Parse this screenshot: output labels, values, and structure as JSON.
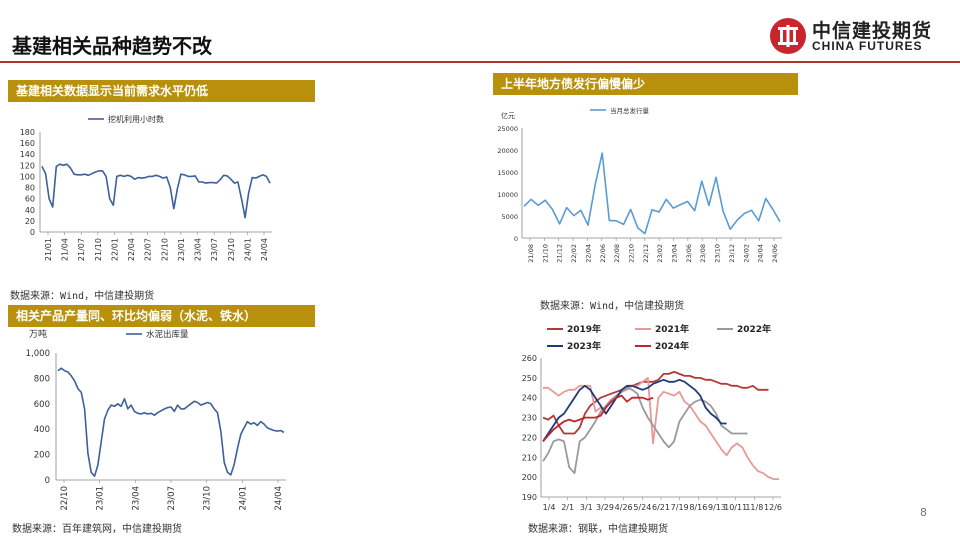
{
  "page": {
    "title": "基建相关品种趋势不改",
    "page_number": "8",
    "logo_cn": "中信建投期货",
    "logo_en": "CHINA FUTURES"
  },
  "panels": {
    "excavator": {
      "header": "基建相关数据显示当前需求水平仍低",
      "source": "数据来源：Wind，中信建投期货"
    },
    "bonds": {
      "header": "上半年地方债发行偏慢偏少",
      "source": "数据来源：Wind，中信建投期货"
    },
    "cement": {
      "header": "相关产品产量同、环比均偏弱（水泥、铁水）",
      "source": "数据来源：百年建筑网，中信建投期货"
    },
    "iron": {
      "source": "数据来源：钢联，中信建投期货"
    }
  },
  "colors": {
    "band": "#b8900c",
    "accent": "#b5312b"
  },
  "chart_data": [
    {
      "id": "excavator",
      "type": "line",
      "legend": [
        "挖机利用小时数"
      ],
      "ylim": [
        0,
        180
      ],
      "yticks": [
        "0",
        "20",
        "40",
        "60",
        "80",
        "100",
        "120",
        "140",
        "160",
        "180"
      ],
      "xticks": [
        "21/01",
        "21/04",
        "21/07",
        "21/10",
        "22/01",
        "22/04",
        "22/07",
        "22/10",
        "23/01",
        "23/04",
        "23/07",
        "23/10",
        "24/01",
        "24/04"
      ],
      "series": [
        {
          "color": "#3d5f9c",
          "values": [
            118,
            105,
            60,
            45,
            118,
            122,
            120,
            122,
            115,
            104,
            103,
            103,
            104,
            102,
            105,
            108,
            110,
            110,
            100,
            60,
            48,
            100,
            102,
            100,
            102,
            100,
            95,
            98,
            97,
            98,
            100,
            100,
            102,
            100,
            97,
            99,
            80,
            42,
            78,
            104,
            103,
            100,
            100,
            101,
            90,
            90,
            88,
            89,
            89,
            88,
            94,
            102,
            101,
            95,
            88,
            90,
            60,
            26,
            70,
            98,
            97,
            100,
            103,
            100,
            88
          ]
        }
      ]
    },
    {
      "id": "bonds",
      "type": "line",
      "unit": "亿元",
      "legend": [
        "当月总发行量"
      ],
      "ylim": [
        0,
        25000
      ],
      "yticks": [
        "0",
        "5000",
        "10000",
        "15000",
        "20000",
        "25000"
      ],
      "xticks": [
        "21/08",
        "21/10",
        "21/12",
        "22/02",
        "22/04",
        "22/06",
        "22/08",
        "22/10",
        "22/12",
        "23/02",
        "23/04",
        "23/06",
        "23/08",
        "23/10",
        "23/12",
        "24/02",
        "24/04",
        "24/06"
      ],
      "series": [
        {
          "color": "#5b9bd5",
          "values": [
            7200,
            8800,
            7400,
            8600,
            6500,
            3200,
            6900,
            5100,
            6300,
            2900,
            12000,
            19300,
            4000,
            3900,
            3100,
            6500,
            2300,
            1000,
            6400,
            5900,
            8800,
            6800,
            7600,
            8300,
            6200,
            12900,
            7400,
            13800,
            6100,
            2000,
            4100,
            5600,
            6300,
            3900,
            9000,
            6500,
            3700
          ]
        }
      ]
    },
    {
      "id": "cement",
      "type": "line",
      "unit": "万吨",
      "legend": [
        "水泥出库量"
      ],
      "ylim": [
        0,
        1000
      ],
      "yticks": [
        "0",
        "200",
        "400",
        "600",
        "800",
        "1,000"
      ],
      "xticks": [
        "22/10",
        "23/01",
        "23/04",
        "23/07",
        "23/10",
        "24/01",
        "24/04"
      ],
      "series": [
        {
          "color": "#3d5f9c",
          "values": [
            860,
            880,
            860,
            850,
            820,
            780,
            720,
            690,
            560,
            210,
            60,
            30,
            120,
            300,
            480,
            550,
            590,
            580,
            600,
            580,
            640,
            560,
            590,
            540,
            525,
            520,
            530,
            520,
            525,
            510,
            530,
            545,
            560,
            570,
            575,
            540,
            590,
            560,
            560,
            580,
            600,
            620,
            610,
            590,
            600,
            610,
            600,
            560,
            530,
            380,
            140,
            60,
            40,
            120,
            250,
            360,
            410,
            460,
            440,
            450,
            430,
            460,
            440,
            410,
            400,
            390,
            385,
            390,
            375
          ]
        }
      ]
    },
    {
      "id": "iron",
      "type": "line",
      "ylim": [
        190,
        260
      ],
      "yticks": [
        "190",
        "200",
        "210",
        "220",
        "230",
        "240",
        "250",
        "260"
      ],
      "xticks": [
        "1/4",
        "2/1",
        "3/1",
        "3/29",
        "4/26",
        "5/24",
        "6/21",
        "7/19",
        "8/16",
        "9/13",
        "10/11",
        "11/8",
        "12/6"
      ],
      "series": [
        {
          "name": "2019年",
          "color": "#b03a3a",
          "values": [
            230,
            229,
            231,
            226,
            222,
            222,
            222,
            225,
            232,
            236,
            238,
            240,
            241,
            242,
            243,
            244,
            245,
            246,
            247,
            248,
            248,
            248,
            249,
            252,
            252,
            253,
            252,
            251,
            251,
            250,
            250,
            249,
            249,
            248,
            247,
            247,
            246,
            246,
            245,
            245,
            246,
            244,
            244,
            244
          ]
        },
        {
          "name": "2021年",
          "color": "#e79a95",
          "values": [
            245,
            245,
            243,
            241,
            243,
            244,
            244,
            246,
            246,
            246,
            233,
            235,
            232,
            236,
            240,
            243,
            244,
            246,
            246,
            248,
            250,
            217,
            240,
            243,
            242,
            241,
            243,
            238,
            236,
            232,
            228,
            226,
            222,
            218,
            214,
            211,
            215,
            217,
            215,
            210,
            206,
            203,
            202,
            200,
            199,
            199
          ]
        },
        {
          "name": "2022年",
          "color": "#9a9a9a",
          "values": [
            208,
            212,
            218,
            219,
            218,
            205,
            202,
            218,
            220,
            224,
            228,
            233,
            236,
            239,
            241,
            243,
            245,
            244,
            242,
            235,
            230,
            226,
            222,
            218,
            215,
            218,
            228,
            232,
            236,
            238,
            239,
            238,
            236,
            232,
            226,
            224,
            222,
            222,
            222,
            222
          ]
        },
        {
          "name": "2023年",
          "color": "#1f3a7a",
          "values": [
            218,
            222,
            226,
            230,
            232,
            236,
            240,
            244,
            246,
            244,
            240,
            236,
            232,
            236,
            240,
            244,
            246,
            246,
            245,
            244,
            245,
            247,
            248,
            249,
            248,
            248,
            249,
            248,
            246,
            244,
            241,
            235,
            232,
            230,
            227,
            227
          ]
        },
        {
          "name": "2024年",
          "color": "#c0252b",
          "values": [
            218,
            221,
            224,
            226,
            228,
            229,
            228,
            229,
            230,
            230,
            230,
            231,
            235,
            238,
            240,
            241,
            238,
            240,
            240,
            240,
            239,
            240
          ]
        }
      ]
    }
  ]
}
